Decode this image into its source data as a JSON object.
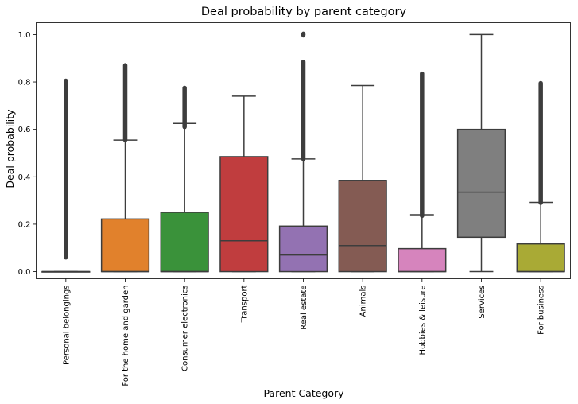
{
  "chart_data": {
    "type": "box",
    "title": "Deal probability by parent category",
    "xlabel": "Parent Category",
    "ylabel": "Deal probability",
    "ylim": [
      -0.03,
      1.05
    ],
    "yticks": [
      0.0,
      0.2,
      0.4,
      0.6,
      0.8,
      1.0
    ],
    "ytick_labels": [
      "0.0",
      "0.2",
      "0.4",
      "0.6",
      "0.8",
      "1.0"
    ],
    "grid": false,
    "categories": [
      "Personal belongings",
      "For the home and garden",
      "Consumer electronics",
      "Transport",
      "Real estate",
      "Animals",
      "Hobbies & leisure",
      "Services",
      "For business"
    ],
    "boxes": [
      {
        "category": "Personal belongings",
        "color": "#3274a1",
        "whisker_low": 0.0,
        "q1": 0.0,
        "median": 0.0,
        "q3": 0.0,
        "whisker_high": 0.0,
        "outlier_range": [
          0.06,
          0.805
        ]
      },
      {
        "category": "For the home and garden",
        "color": "#e1812c",
        "whisker_low": 0.0,
        "q1": 0.0,
        "median": 0.0,
        "q3": 0.222,
        "whisker_high": 0.555,
        "outlier_range": [
          0.555,
          0.87
        ]
      },
      {
        "category": "Consumer electronics",
        "color": "#3a923a",
        "whisker_low": 0.0,
        "q1": 0.0,
        "median": 0.0,
        "q3": 0.25,
        "whisker_high": 0.625,
        "outlier_range": [
          0.61,
          0.775
        ]
      },
      {
        "category": "Transport",
        "color": "#c03d3e",
        "whisker_low": 0.0,
        "q1": 0.0,
        "median": 0.13,
        "q3": 0.485,
        "whisker_high": 0.74,
        "outlier_range": null
      },
      {
        "category": "Real estate",
        "color": "#9372b2",
        "whisker_low": 0.0,
        "q1": 0.0,
        "median": 0.07,
        "q3": 0.192,
        "whisker_high": 0.475,
        "outlier_range": [
          0.475,
          0.885
        ],
        "extra_outliers": [
          1.0
        ]
      },
      {
        "category": "Animals",
        "color": "#845b53",
        "whisker_low": 0.0,
        "q1": 0.0,
        "median": 0.11,
        "q3": 0.385,
        "whisker_high": 0.785,
        "outlier_range": null
      },
      {
        "category": "Hobbies & leisure",
        "color": "#d684bd",
        "whisker_low": 0.0,
        "q1": 0.0,
        "median": 0.0,
        "q3": 0.097,
        "whisker_high": 0.24,
        "outlier_range": [
          0.235,
          0.835
        ]
      },
      {
        "category": "Services",
        "color": "#7f7f7f",
        "whisker_low": 0.0,
        "q1": 0.145,
        "median": 0.335,
        "q3": 0.6,
        "whisker_high": 1.0,
        "outlier_range": null
      },
      {
        "category": "For business",
        "color": "#a9aa35",
        "whisker_low": 0.0,
        "q1": 0.0,
        "median": 0.0,
        "q3": 0.117,
        "whisker_high": 0.292,
        "outlier_range": [
          0.29,
          0.795
        ]
      }
    ]
  }
}
